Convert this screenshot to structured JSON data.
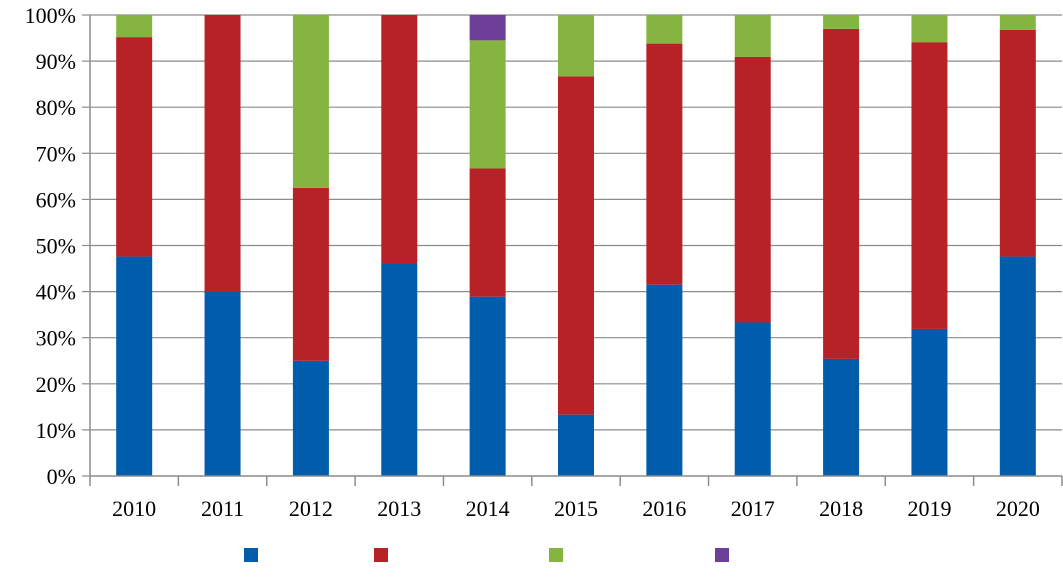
{
  "chart_data": {
    "type": "bar",
    "stacked": true,
    "percent": true,
    "categories": [
      "2010",
      "2011",
      "2012",
      "2013",
      "2014",
      "2015",
      "2016",
      "2017",
      "2018",
      "2019",
      "2020"
    ],
    "series": [
      {
        "color": "#005DAB",
        "values": [
          47.6,
          40.0,
          25.0,
          46.2,
          38.9,
          13.3,
          41.5,
          33.3,
          25.4,
          31.9,
          47.6
        ]
      },
      {
        "color": "#B72227",
        "values": [
          47.6,
          60.0,
          37.5,
          53.8,
          27.8,
          73.4,
          52.3,
          57.6,
          71.6,
          62.2,
          49.2
        ]
      },
      {
        "color": "#86B440",
        "values": [
          4.8,
          0.0,
          37.5,
          0.0,
          27.8,
          13.3,
          6.2,
          9.1,
          3.0,
          5.9,
          3.2
        ]
      },
      {
        "color": "#6E3F98",
        "values": [
          0.0,
          0.0,
          0.0,
          0.0,
          5.5,
          0.0,
          0.0,
          0.0,
          0.0,
          0.0,
          0.0
        ]
      }
    ],
    "y_ticks": [
      "0%",
      "10%",
      "20%",
      "30%",
      "40%",
      "50%",
      "60%",
      "70%",
      "80%",
      "90%",
      "100%"
    ],
    "ylim": [
      0,
      100
    ],
    "grid": true,
    "legend_position": "bottom"
  }
}
